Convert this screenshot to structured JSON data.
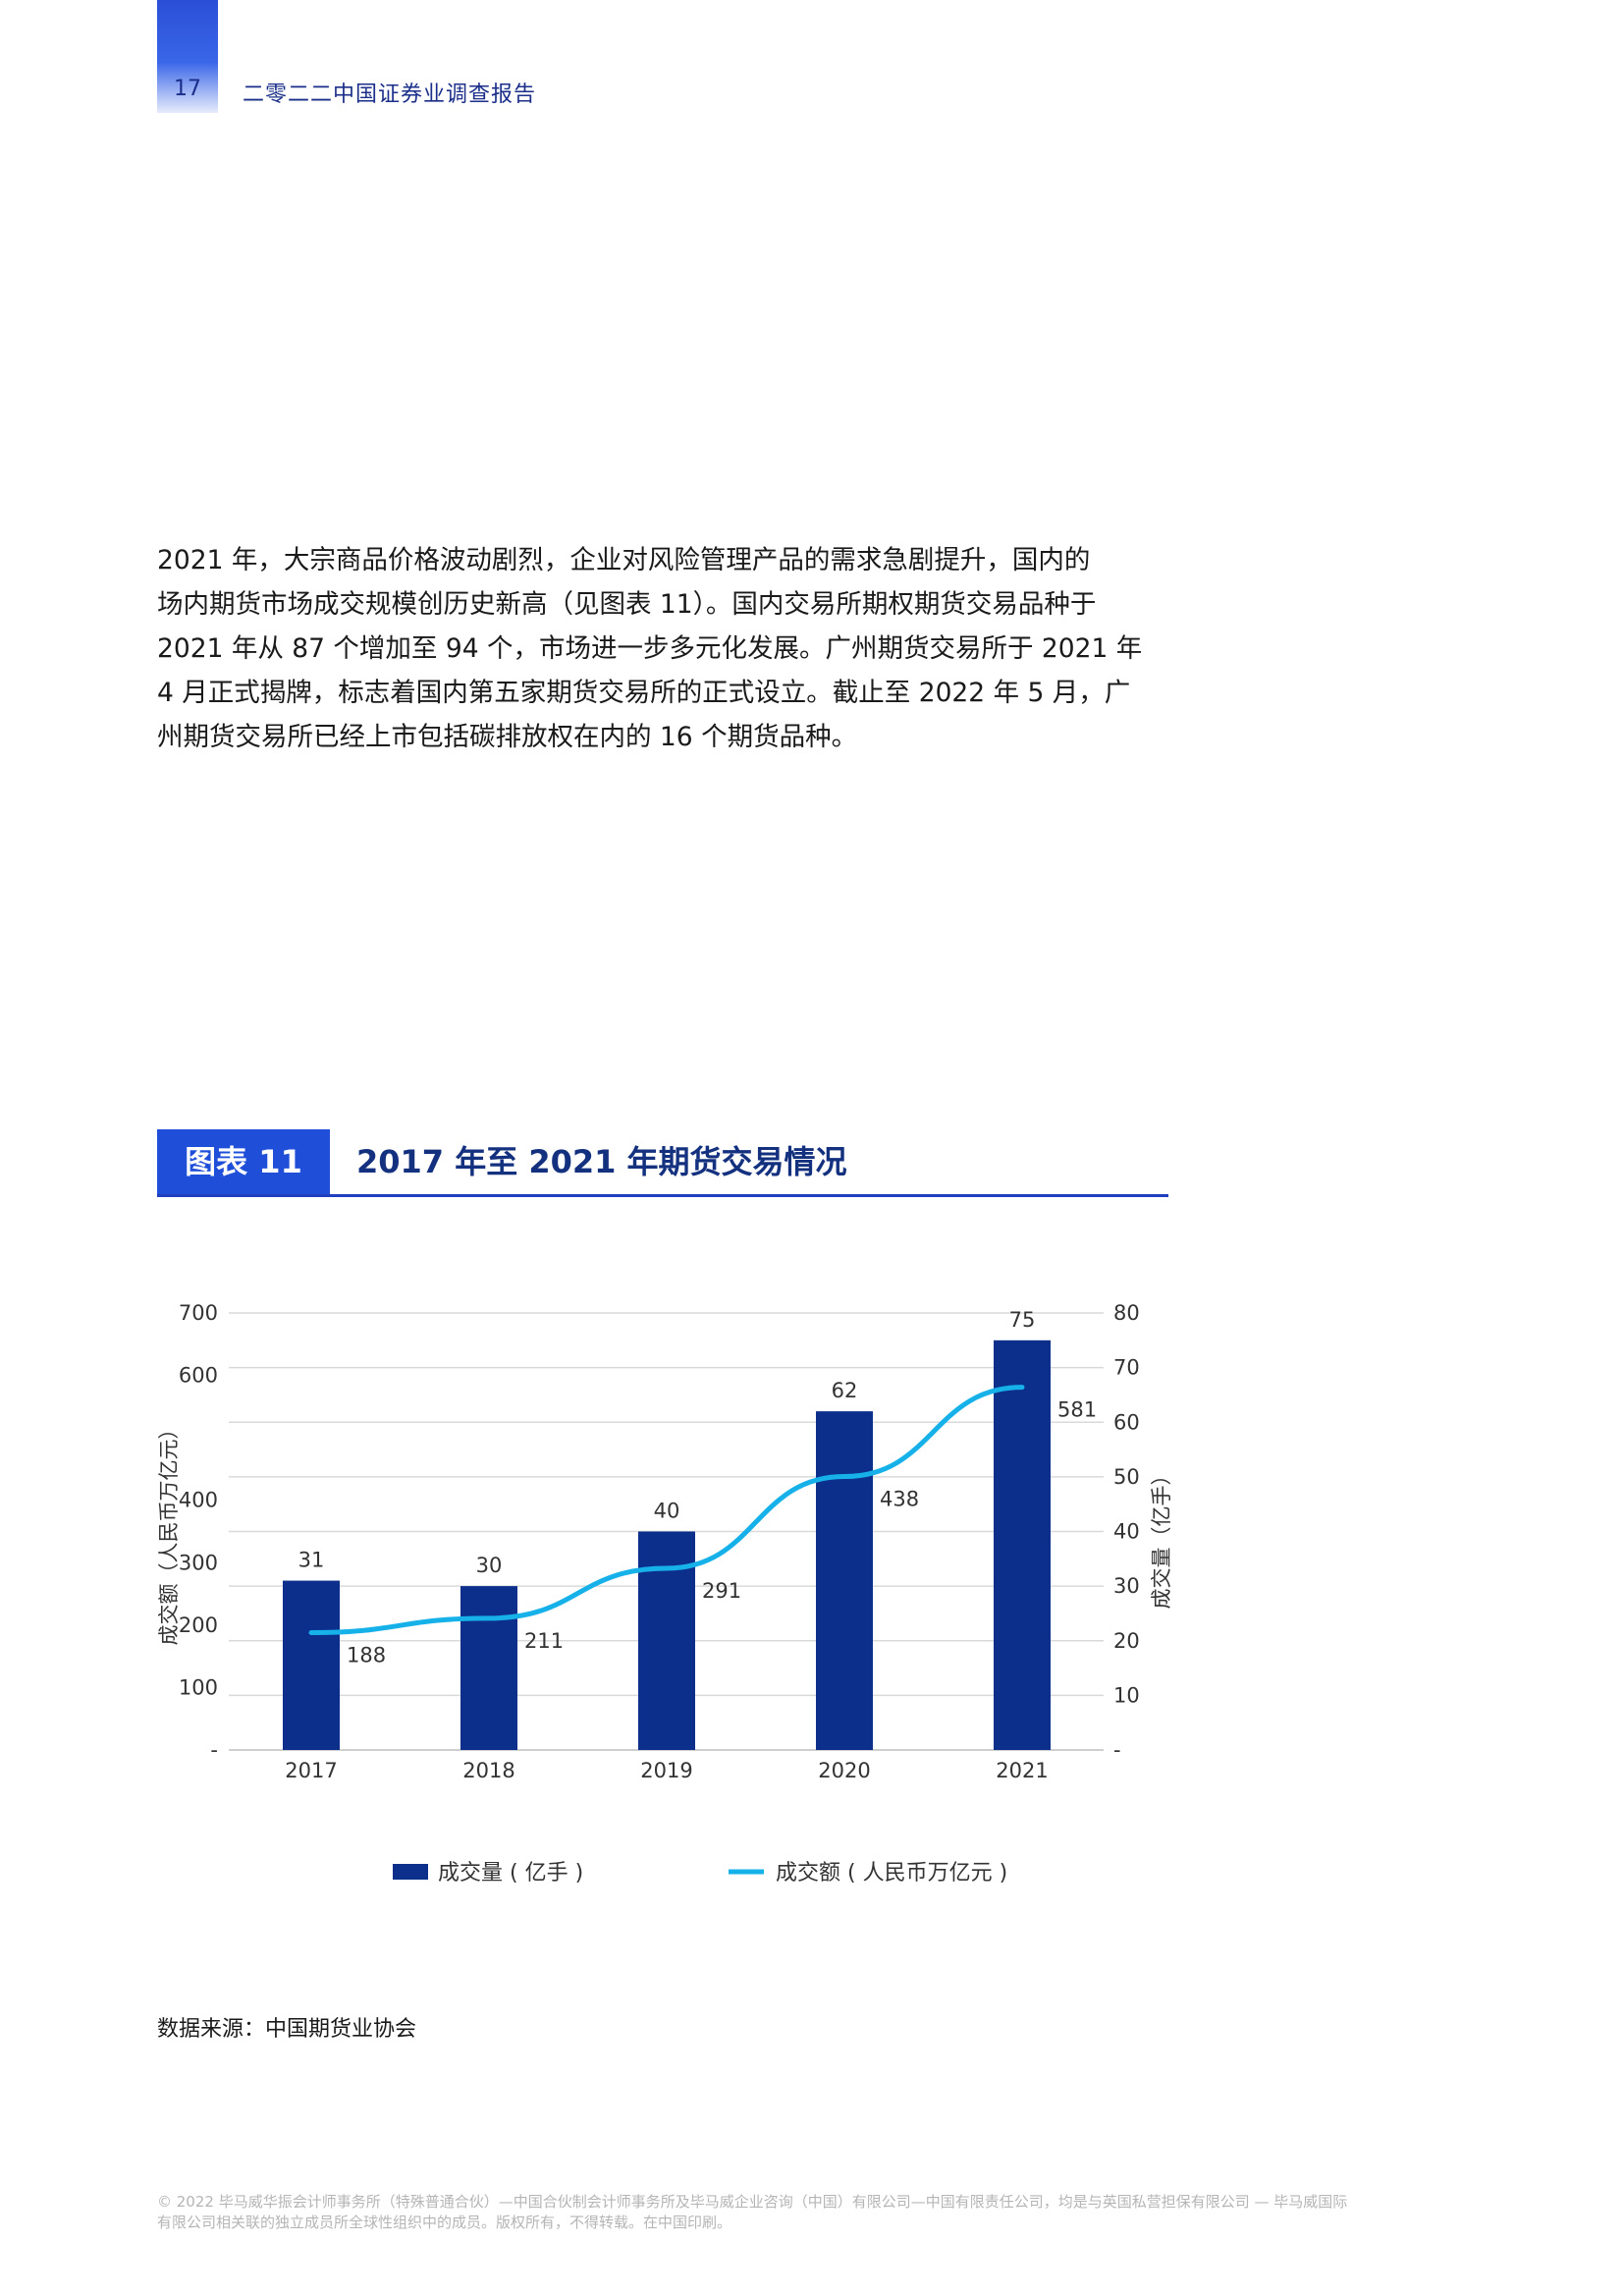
{
  "header": {
    "page_number": "17",
    "running_title": "二零二二中国证券业调查报告"
  },
  "body": {
    "lines": [
      "2021 年，大宗商品价格波动剧烈，企业对风险管理产品的需求急剧提升，国内的",
      "场内期货市场成交规模创历史新高（见图表 11）。国内交易所期权期货交易品种于",
      "2021 年从 87 个增加至 94 个，市场进一步多元化发展。广州期货交易所于 2021 年",
      "4 月正式揭牌，标志着国内第五家期货交易所的正式设立。截止至 2022 年 5 月，广",
      "州期货交易所已经上市包括碳排放权在内的 16 个期货品种。"
    ]
  },
  "figure": {
    "tag": "图表 11",
    "title": "2017 年至 2021 年期货交易情况"
  },
  "chart_data": {
    "type": "bar",
    "title": "2017 年至 2021 年期货交易情况",
    "categories": [
      "2017",
      "2018",
      "2019",
      "2020",
      "2021"
    ],
    "series": [
      {
        "name": "成交量 ( 亿手 )",
        "type": "bar",
        "axis": "right",
        "values": [
          31,
          30,
          40,
          62,
          75
        ],
        "color": "#0d2f8c"
      },
      {
        "name": "成交额 ( 人民币万亿元 )",
        "type": "line",
        "axis": "left",
        "values": [
          188,
          211,
          291,
          438,
          581
        ],
        "color": "#17b1ea"
      }
    ],
    "left_axis": {
      "label": "成交额（人民币万亿元）",
      "ticks": [
        "-",
        "100",
        "200",
        "300",
        "400",
        "600",
        "700"
      ],
      "range": [
        0,
        700
      ]
    },
    "right_axis": {
      "label": "成交量（亿手）",
      "ticks": [
        "-",
        "10",
        "20",
        "30",
        "40",
        "50",
        "60",
        "70",
        "80"
      ],
      "range": [
        0,
        80
      ]
    },
    "grid": true,
    "legend": "bottom"
  },
  "source": "数据来源：中国期货业协会",
  "footer": {
    "line1": "© 2022 毕马威华振会计师事务所（特殊普通合伙）—中国合伙制会计师事务所及毕马威企业咨询（中国）有限公司—中国有限责任公司，均是与英国私营担保有限公司 — 毕马威国际",
    "line2": "有限公司相关联的独立成员所全球性组织中的成员。版权所有，不得转载。在中国印刷。"
  }
}
